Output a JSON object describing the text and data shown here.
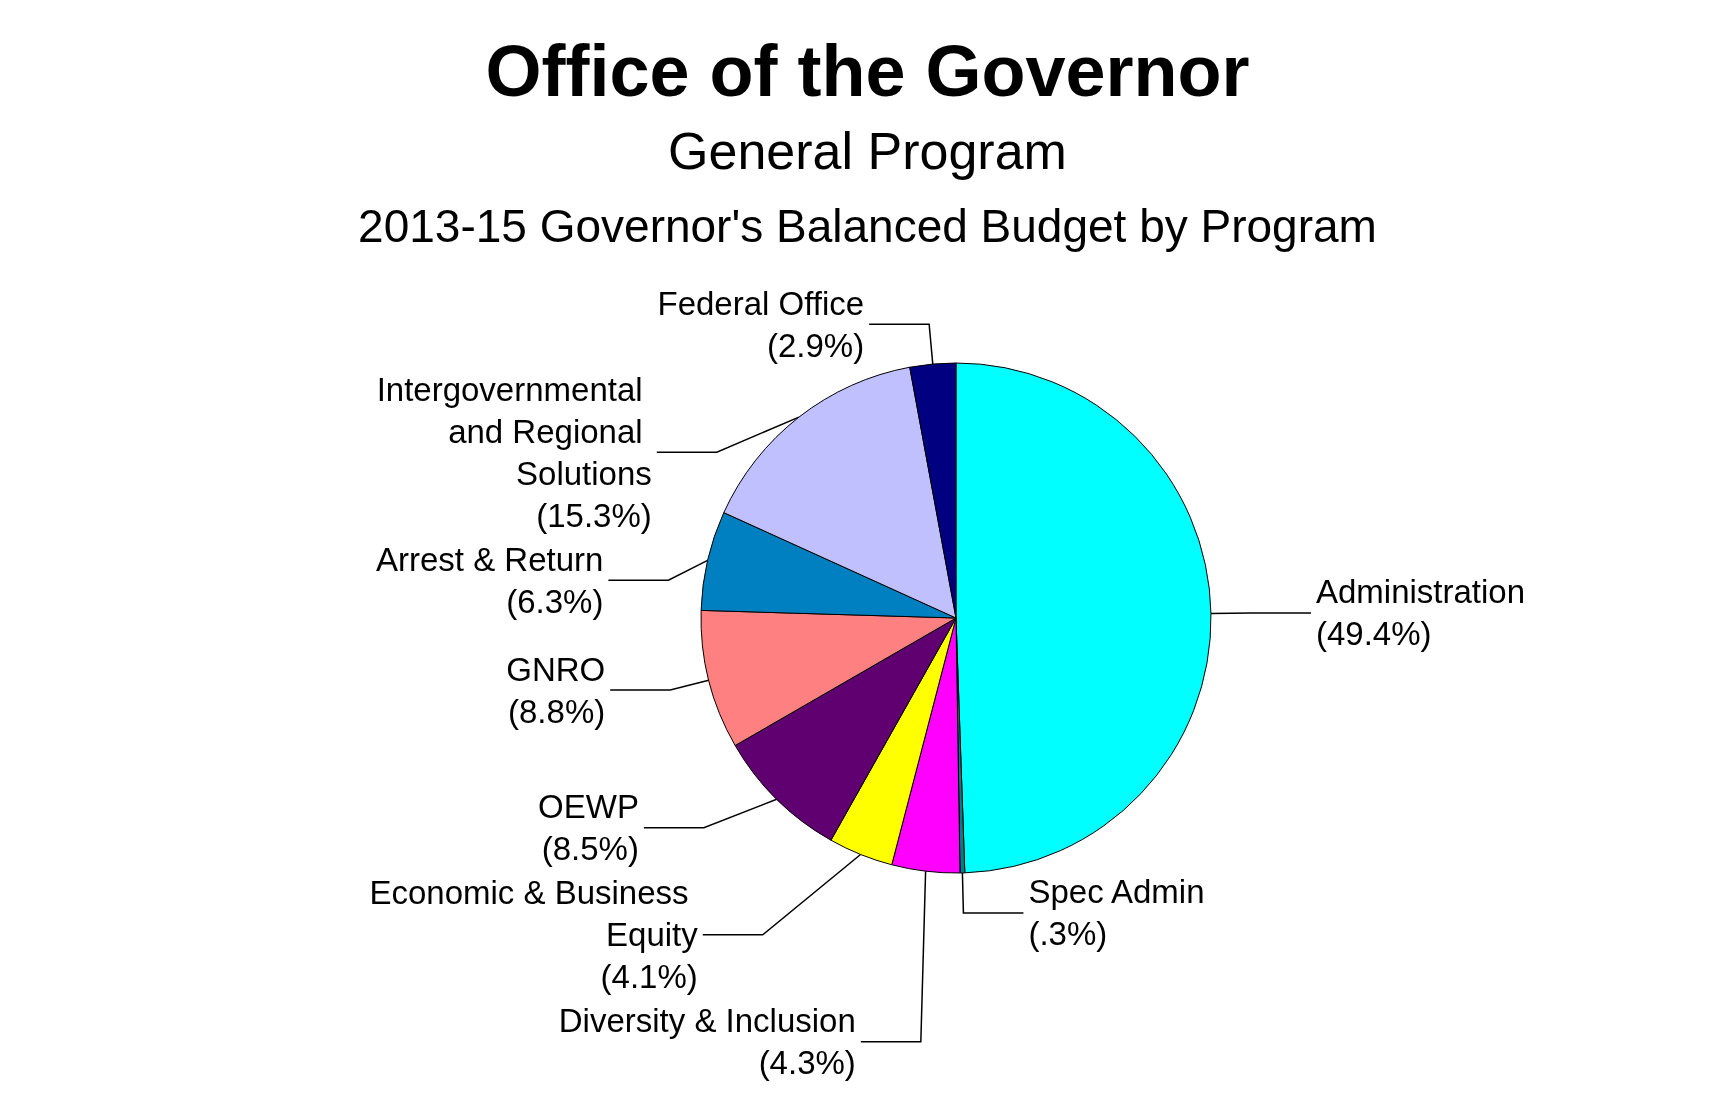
{
  "chart_data": {
    "type": "pie",
    "title": "Office of the Governor",
    "subtitle": "General Program",
    "annotations": [
      "2013-15 Governor's Balanced Budget by Program"
    ],
    "categories": [
      "Administration",
      "Spec Admin",
      "Diversity & Inclusion",
      "Economic & Business Equity",
      "OEWP",
      "GNRO",
      "Arrest & Return",
      "Intergovernmental and Regional Solutions",
      "Federal Office"
    ],
    "values": [
      49.4,
      0.3,
      4.3,
      4.1,
      8.5,
      8.8,
      6.3,
      15.3,
      2.9
    ],
    "value_labels": [
      "(49.4%)",
      "(.3%)",
      "(4.3%)",
      "(4.1%)",
      "(8.5%)",
      "(8.8%)",
      "(6.3%)",
      "(15.3%)",
      "(2.9%)"
    ],
    "colors": [
      "#00ffff",
      "#008080",
      "#ff00ff",
      "#ffff00",
      "#600070",
      "#ff8080",
      "#0080c0",
      "#c0c0ff",
      "#000080"
    ],
    "legend": false
  }
}
